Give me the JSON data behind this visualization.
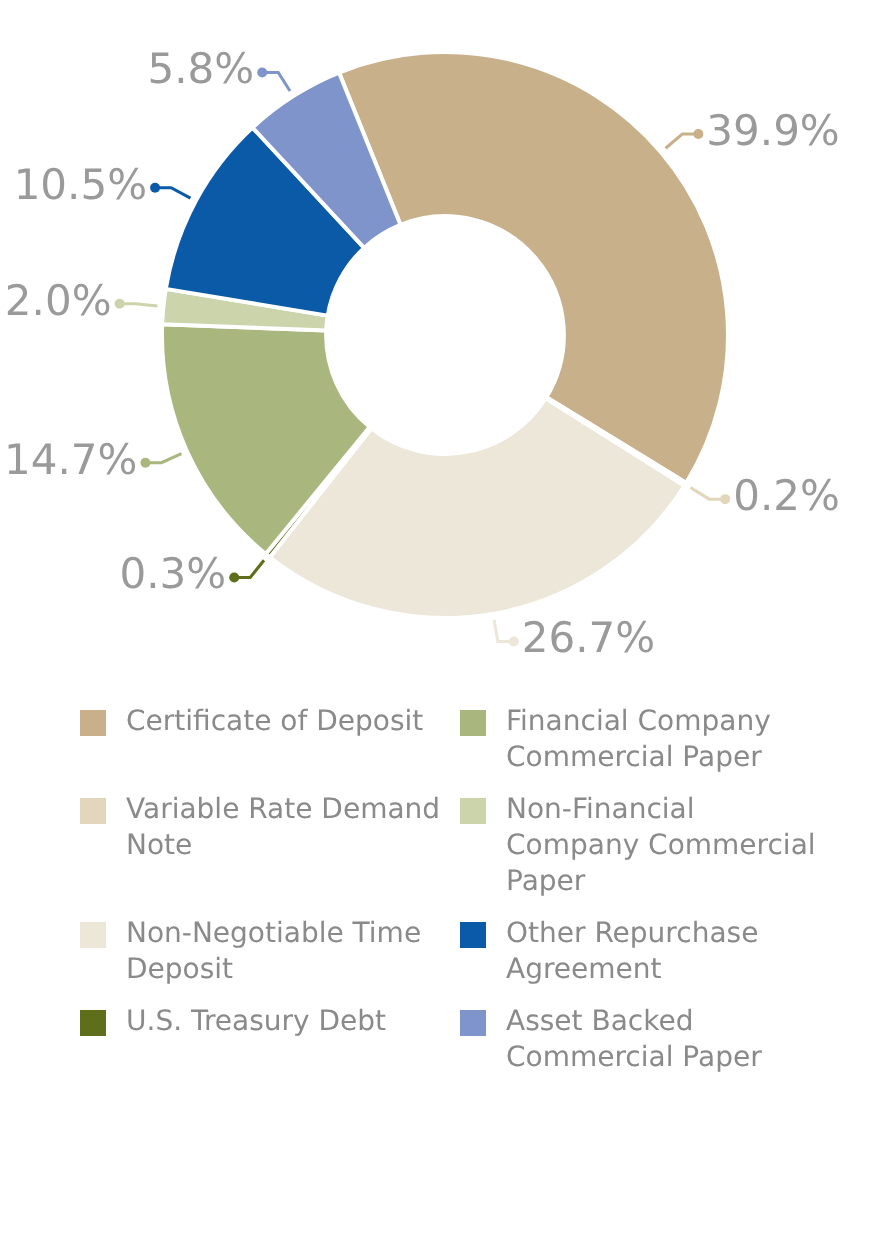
{
  "chart_data": {
    "type": "donut",
    "categories": [
      "Certificate of Deposit",
      "Variable Rate Demand Note",
      "Non-Negotiable Time Deposit",
      "U.S. Treasury Debt",
      "Financial Company Commercial Paper",
      "Non-Financial Company Commercial Paper",
      "Other Repurchase Agreement",
      "Asset Backed Commercial Paper"
    ],
    "values": [
      39.9,
      0.2,
      26.7,
      0.3,
      14.7,
      2.0,
      10.5,
      5.8
    ],
    "colors": [
      "#c8b08a",
      "#e2d6bc",
      "#ede7da",
      "#5e6e1a",
      "#a9b77e",
      "#ccd4ac",
      "#0a5aa8",
      "#8094cc"
    ],
    "value_labels": [
      "39.9%",
      "0.2%",
      "26.7%",
      "0.3%",
      "14.7%",
      "2.0%",
      "10.5%",
      "5.8%"
    ],
    "legend": "bottom"
  }
}
